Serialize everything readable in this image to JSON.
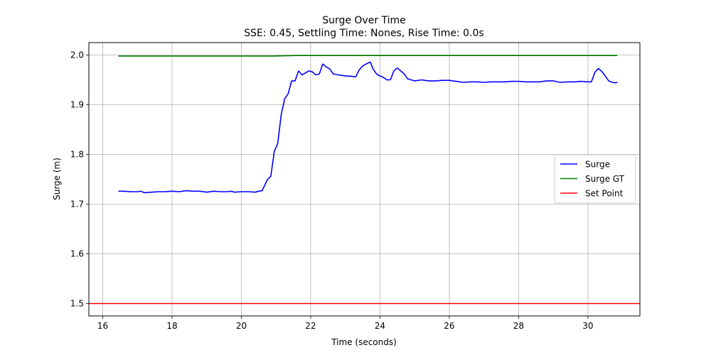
{
  "chart_data": {
    "type": "line",
    "title": "Surge Over Time",
    "subtitle": "SSE: 0.45, Settling Time: Nones, Rise Time: 0.0s",
    "xlabel": "Time (seconds)",
    "ylabel": "Surge (m)",
    "xlim": [
      15.6,
      31.5
    ],
    "ylim": [
      1.475,
      2.025
    ],
    "xticks": [
      16,
      18,
      20,
      22,
      24,
      26,
      28,
      30
    ],
    "yticks": [
      1.5,
      1.6,
      1.7,
      1.8,
      1.9,
      2.0
    ],
    "xtick_labels": [
      "16",
      "18",
      "20",
      "22",
      "24",
      "26",
      "28",
      "30"
    ],
    "ytick_labels": [
      "1.5",
      "1.6",
      "1.7",
      "1.8",
      "1.9",
      "2.0"
    ],
    "grid": true,
    "legend_position": "center-right",
    "series": [
      {
        "name": "Surge",
        "color": "#0000ff",
        "points": [
          [
            16.45,
            1.726
          ],
          [
            16.6,
            1.726
          ],
          [
            16.8,
            1.725
          ],
          [
            17.0,
            1.725
          ],
          [
            17.1,
            1.726
          ],
          [
            17.2,
            1.723
          ],
          [
            17.4,
            1.724
          ],
          [
            17.6,
            1.725
          ],
          [
            17.8,
            1.725
          ],
          [
            18.0,
            1.726
          ],
          [
            18.2,
            1.725
          ],
          [
            18.4,
            1.727
          ],
          [
            18.6,
            1.726
          ],
          [
            18.8,
            1.726
          ],
          [
            19.0,
            1.724
          ],
          [
            19.2,
            1.726
          ],
          [
            19.4,
            1.725
          ],
          [
            19.6,
            1.725
          ],
          [
            19.7,
            1.726
          ],
          [
            19.8,
            1.724
          ],
          [
            20.0,
            1.725
          ],
          [
            20.2,
            1.725
          ],
          [
            20.4,
            1.724
          ],
          [
            20.5,
            1.726
          ],
          [
            20.6,
            1.727
          ],
          [
            20.75,
            1.749
          ],
          [
            20.85,
            1.756
          ],
          [
            20.95,
            1.806
          ],
          [
            21.05,
            1.822
          ],
          [
            21.15,
            1.88
          ],
          [
            21.25,
            1.912
          ],
          [
            21.35,
            1.922
          ],
          [
            21.45,
            1.948
          ],
          [
            21.55,
            1.948
          ],
          [
            21.65,
            1.968
          ],
          [
            21.75,
            1.96
          ],
          [
            21.85,
            1.964
          ],
          [
            21.95,
            1.968
          ],
          [
            22.05,
            1.966
          ],
          [
            22.15,
            1.96
          ],
          [
            22.25,
            1.962
          ],
          [
            22.35,
            1.982
          ],
          [
            22.45,
            1.976
          ],
          [
            22.55,
            1.972
          ],
          [
            22.65,
            1.962
          ],
          [
            22.8,
            1.96
          ],
          [
            23.0,
            1.958
          ],
          [
            23.2,
            1.957
          ],
          [
            23.3,
            1.956
          ],
          [
            23.4,
            1.97
          ],
          [
            23.5,
            1.978
          ],
          [
            23.6,
            1.982
          ],
          [
            23.72,
            1.986
          ],
          [
            23.8,
            1.972
          ],
          [
            23.9,
            1.962
          ],
          [
            24.0,
            1.958
          ],
          [
            24.1,
            1.955
          ],
          [
            24.2,
            1.95
          ],
          [
            24.3,
            1.95
          ],
          [
            24.4,
            1.968
          ],
          [
            24.5,
            1.974
          ],
          [
            24.6,
            1.968
          ],
          [
            24.7,
            1.962
          ],
          [
            24.8,
            1.952
          ],
          [
            25.0,
            1.948
          ],
          [
            25.2,
            1.95
          ],
          [
            25.4,
            1.948
          ],
          [
            25.6,
            1.948
          ],
          [
            25.8,
            1.949
          ],
          [
            26.0,
            1.949
          ],
          [
            26.2,
            1.947
          ],
          [
            26.4,
            1.945
          ],
          [
            26.6,
            1.946
          ],
          [
            26.8,
            1.946
          ],
          [
            27.0,
            1.945
          ],
          [
            27.2,
            1.946
          ],
          [
            27.4,
            1.946
          ],
          [
            27.6,
            1.946
          ],
          [
            27.8,
            1.947
          ],
          [
            28.0,
            1.947
          ],
          [
            28.2,
            1.946
          ],
          [
            28.4,
            1.946
          ],
          [
            28.6,
            1.946
          ],
          [
            28.8,
            1.948
          ],
          [
            29.0,
            1.948
          ],
          [
            29.2,
            1.945
          ],
          [
            29.4,
            1.946
          ],
          [
            29.6,
            1.946
          ],
          [
            29.8,
            1.947
          ],
          [
            30.0,
            1.946
          ],
          [
            30.1,
            1.946
          ],
          [
            30.2,
            1.965
          ],
          [
            30.3,
            1.973
          ],
          [
            30.4,
            1.967
          ],
          [
            30.5,
            1.958
          ],
          [
            30.6,
            1.948
          ],
          [
            30.7,
            1.945
          ],
          [
            30.8,
            1.944
          ],
          [
            30.85,
            1.945
          ]
        ]
      },
      {
        "name": "Surge GT",
        "color": "#008000",
        "points": [
          [
            16.45,
            1.998
          ],
          [
            18.0,
            1.998
          ],
          [
            20.0,
            1.998
          ],
          [
            20.9,
            1.998
          ],
          [
            21.6,
            1.999
          ],
          [
            22.0,
            1.999
          ],
          [
            24.0,
            1.999
          ],
          [
            26.0,
            1.999
          ],
          [
            28.0,
            1.999
          ],
          [
            30.0,
            1.999
          ],
          [
            30.85,
            1.999
          ]
        ]
      },
      {
        "name": "Set Point",
        "color": "#ff0000",
        "points": [
          [
            15.6,
            1.5
          ],
          [
            31.5,
            1.5
          ]
        ]
      }
    ]
  }
}
